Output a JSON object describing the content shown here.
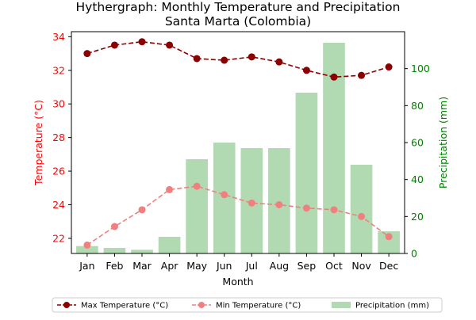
{
  "chart_data": {
    "type": "bar+line",
    "title": "Hythergraph: Monthly Temperature and Precipitation\nSanta Marta (Colombia)",
    "xlabel": "Month",
    "ylabel_left": "Temperature (°C)",
    "ylabel_right": "Precipitation (mm)",
    "categories": [
      "Jan",
      "Feb",
      "Mar",
      "Apr",
      "May",
      "Jun",
      "Jul",
      "Aug",
      "Sep",
      "Oct",
      "Nov",
      "Dec"
    ],
    "ylim_left": [
      21.1,
      34.3
    ],
    "yticks_left": [
      22,
      24,
      26,
      28,
      30,
      32,
      34
    ],
    "ylim_right": [
      0,
      120
    ],
    "yticks_right": [
      0,
      20,
      40,
      60,
      80,
      100
    ],
    "series": [
      {
        "name": "Max Temperature (°C)",
        "type": "line",
        "axis": "left",
        "color": "#8b0000",
        "linestyle": "dashed",
        "marker": "circle",
        "values": [
          33.0,
          33.5,
          33.7,
          33.5,
          32.7,
          32.6,
          32.8,
          32.5,
          32.0,
          31.6,
          31.7,
          32.2
        ]
      },
      {
        "name": "Min Temperature (°C)",
        "type": "line",
        "axis": "left",
        "color": "#f08080",
        "linestyle": "dashed",
        "marker": "circle",
        "values": [
          21.6,
          22.7,
          23.7,
          24.9,
          25.1,
          24.6,
          24.1,
          24.0,
          23.8,
          23.7,
          23.3,
          22.1
        ]
      },
      {
        "name": "Precipitation (mm)",
        "type": "bar",
        "axis": "right",
        "color": "#b2dab2",
        "values": [
          4,
          3,
          2,
          9,
          51,
          60,
          57,
          57,
          87,
          114,
          48,
          12
        ]
      }
    ],
    "legend_position": "bottom-center",
    "colors": {
      "left_axis": "#ff0000",
      "right_axis": "#008000"
    }
  }
}
